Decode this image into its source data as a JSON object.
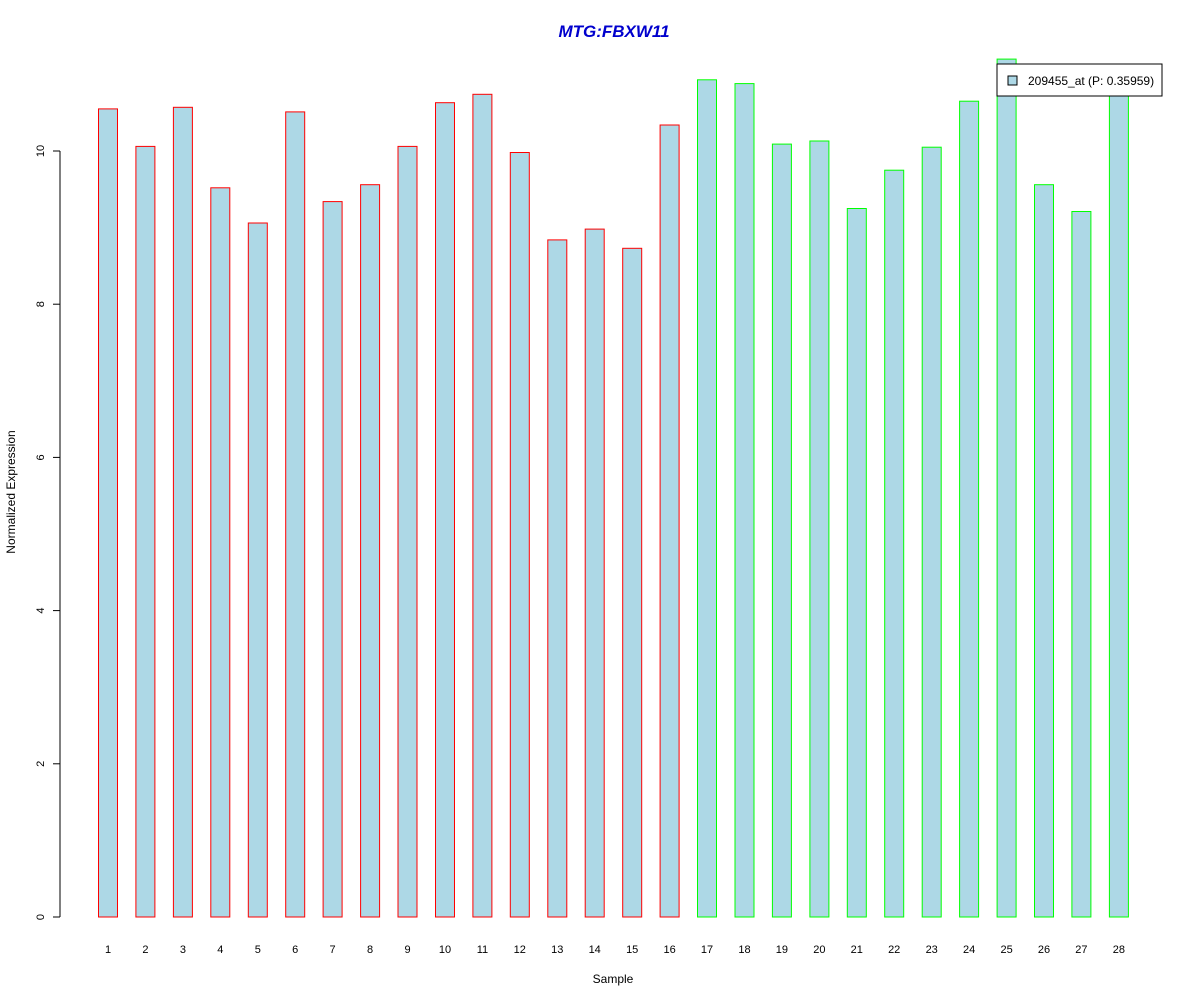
{
  "chart_data": {
    "type": "bar",
    "title": "MTG:FBXW11",
    "xlabel": "Sample",
    "ylabel": "Normalized Expression",
    "ylim": [
      0,
      11.2
    ],
    "yticks": [
      0,
      2,
      4,
      6,
      8,
      10
    ],
    "grid": false,
    "categories": [
      "1",
      "2",
      "3",
      "4",
      "5",
      "6",
      "7",
      "8",
      "9",
      "10",
      "11",
      "12",
      "13",
      "14",
      "15",
      "16",
      "17",
      "18",
      "19",
      "20",
      "21",
      "22",
      "23",
      "24",
      "25",
      "26",
      "27",
      "28"
    ],
    "values": [
      10.55,
      10.06,
      10.57,
      9.52,
      9.06,
      10.51,
      9.34,
      9.56,
      10.06,
      10.63,
      10.74,
      9.98,
      8.84,
      8.98,
      8.73,
      10.34,
      10.93,
      10.88,
      10.09,
      10.13,
      9.25,
      9.75,
      10.05,
      10.65,
      11.2,
      9.56,
      9.21,
      10.85
    ],
    "bar_fill": "#add8e6",
    "bar_outline": [
      "#ff0000",
      "#ff0000",
      "#ff0000",
      "#ff0000",
      "#ff0000",
      "#ff0000",
      "#ff0000",
      "#ff0000",
      "#ff0000",
      "#ff0000",
      "#ff0000",
      "#ff0000",
      "#ff0000",
      "#ff0000",
      "#ff0000",
      "#ff0000",
      "#00ff00",
      "#00ff00",
      "#00ff00",
      "#00ff00",
      "#00ff00",
      "#00ff00",
      "#00ff00",
      "#00ff00",
      "#00ff00",
      "#00ff00",
      "#00ff00",
      "#00ff00"
    ],
    "title_color": "#0000cd",
    "legend": {
      "label": "209455_at (P: 0.35959)",
      "placement": "top-right",
      "swatch_color": "#add8e6"
    }
  }
}
